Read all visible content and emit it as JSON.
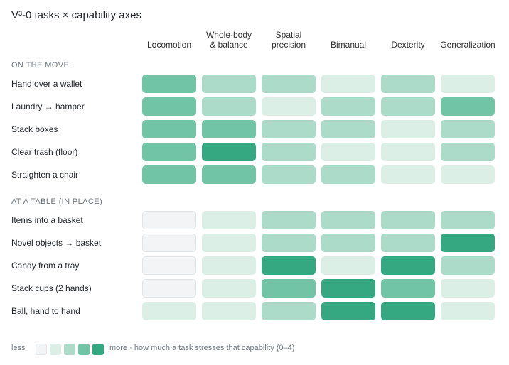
{
  "title": "V³-0 tasks × capability axes",
  "columns": [
    {
      "l1": "Locomotion",
      "l2": ""
    },
    {
      "l1": "Whole-body",
      "l2": "& balance"
    },
    {
      "l1": "Spatial",
      "l2": "precision"
    },
    {
      "l1": "Bimanual",
      "l2": ""
    },
    {
      "l1": "Dexterity",
      "l2": ""
    },
    {
      "l1": "Generalization",
      "l2": ""
    }
  ],
  "sections": [
    {
      "name": "ON THE MOVE",
      "rows": [
        {
          "label": "Hand over a wallet",
          "values": [
            3,
            2,
            2,
            1,
            2,
            1
          ]
        },
        {
          "label": "Laundry → hamper",
          "values": [
            3,
            2,
            1,
            2,
            2,
            3
          ]
        },
        {
          "label": "Stack boxes",
          "values": [
            3,
            3,
            2,
            2,
            1,
            2
          ]
        },
        {
          "label": "Clear trash (floor)",
          "values": [
            3,
            4,
            2,
            1,
            1,
            2
          ]
        },
        {
          "label": "Straighten a chair",
          "values": [
            3,
            3,
            2,
            2,
            1,
            1
          ]
        }
      ]
    },
    {
      "name": "AT A TABLE (IN PLACE)",
      "rows": [
        {
          "label": "Items into a basket",
          "values": [
            0,
            1,
            2,
            2,
            2,
            2
          ]
        },
        {
          "label": "Novel objects → basket",
          "values": [
            0,
            1,
            2,
            2,
            2,
            4
          ]
        },
        {
          "label": "Candy from a tray",
          "values": [
            0,
            1,
            4,
            1,
            4,
            2
          ]
        },
        {
          "label": "Stack cups (2 hands)",
          "values": [
            0,
            1,
            3,
            4,
            3,
            1
          ]
        },
        {
          "label": "Ball, hand to hand",
          "values": [
            1,
            1,
            2,
            4,
            4,
            1
          ]
        }
      ]
    }
  ],
  "legend": {
    "less": "less",
    "more": "more · how much a task stresses that capability (0–4)"
  },
  "colors": {
    "level0": "#f3f4f6",
    "level1": "#dbefe7",
    "level2": "#acdcc9",
    "level3": "#71c4a6",
    "level4": "#35a781",
    "level0_border": "#e2e4e8"
  },
  "chart_data": {
    "type": "heatmap",
    "title": "V³-0 tasks × capability axes",
    "x": [
      "Locomotion",
      "Whole-body & balance",
      "Spatial precision",
      "Bimanual",
      "Dexterity",
      "Generalization"
    ],
    "y": [
      "Hand over a wallet",
      "Laundry → hamper",
      "Stack boxes",
      "Clear trash (floor)",
      "Straighten a chair",
      "Items into a basket",
      "Novel objects → basket",
      "Candy from a tray",
      "Stack cups (2 hands)",
      "Ball, hand to hand"
    ],
    "groups": [
      {
        "name": "ON THE MOVE",
        "rows": [
          "Hand over a wallet",
          "Laundry → hamper",
          "Stack boxes",
          "Clear trash (floor)",
          "Straighten a chair"
        ]
      },
      {
        "name": "AT A TABLE (IN PLACE)",
        "rows": [
          "Items into a basket",
          "Novel objects → basket",
          "Candy from a tray",
          "Stack cups (2 hands)",
          "Ball, hand to hand"
        ]
      }
    ],
    "values": [
      [
        3,
        2,
        2,
        1,
        2,
        1
      ],
      [
        3,
        2,
        1,
        2,
        2,
        3
      ],
      [
        3,
        3,
        2,
        2,
        1,
        2
      ],
      [
        3,
        4,
        2,
        1,
        1,
        2
      ],
      [
        3,
        3,
        2,
        2,
        1,
        1
      ],
      [
        0,
        1,
        2,
        2,
        2,
        2
      ],
      [
        0,
        1,
        2,
        2,
        2,
        4
      ],
      [
        0,
        1,
        4,
        1,
        4,
        2
      ],
      [
        0,
        1,
        3,
        4,
        3,
        1
      ],
      [
        1,
        1,
        2,
        4,
        4,
        1
      ]
    ],
    "scale": [
      0,
      4
    ],
    "legend_text": "less … more · how much a task stresses that capability (0–4)"
  }
}
